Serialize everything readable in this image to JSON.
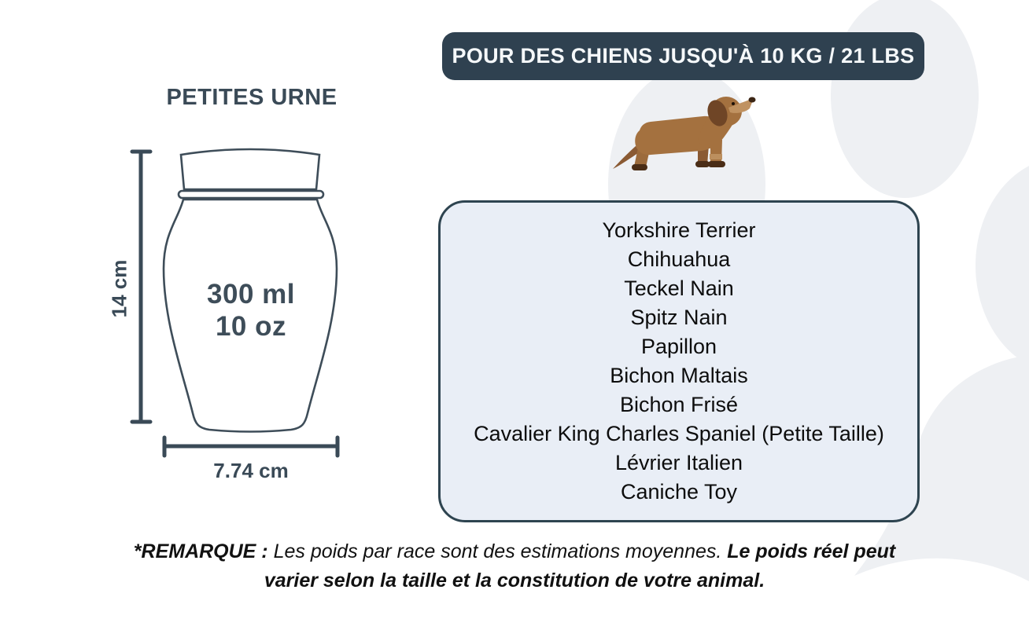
{
  "banner": {
    "label": "POUR DES CHIENS JUSQU'À 10 KG / 21 LBS"
  },
  "urn_panel": {
    "title": "PETITES URNE",
    "volume_ml": "300 ml",
    "volume_oz": "10 oz",
    "height_label": "14 cm",
    "width_label": "7.74 cm"
  },
  "breed_box": {
    "breeds": [
      "Yorkshire Terrier",
      "Chihuahua",
      "Teckel Nain",
      "Spitz Nain",
      "Papillon",
      "Bichon Maltais",
      "Bichon Frisé",
      "Cavalier King Charles Spaniel (Petite Taille)",
      "Lévrier Italien",
      "Caniche Toy"
    ]
  },
  "note": {
    "prefix": "*REMARQUE :",
    "body": " Les poids par race sont des estimations moyennes. ",
    "emphasis": "Le poids réel peut varier selon la taille et la constitution de votre animal."
  },
  "icons": {
    "dog": "dachshund-illustration",
    "background": "paw-print-shape"
  },
  "colors": {
    "banner_bg": "#2F4150",
    "banner_text": "#F5F8FA",
    "box_bg": "#E9EEF6",
    "box_border": "#2E4450",
    "slate_text": "#3A4A57",
    "paw_bg": "#EEF0F3",
    "breed_text": "#0D0D0D",
    "dog_body": "#A4713F",
    "dog_dark": "#6F4526",
    "dog_muzzle": "#C09261",
    "dog_paw": "#4A2D16"
  }
}
